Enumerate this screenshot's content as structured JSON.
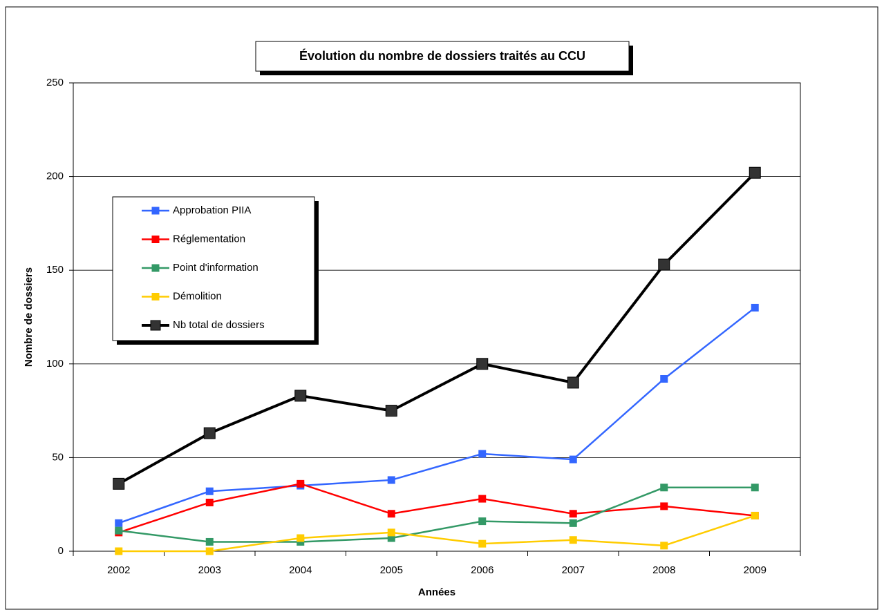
{
  "chart_data": {
    "type": "line",
    "title": "Évolution du nombre de dossiers traités au CCU",
    "x_label": "Années",
    "y_label": "Nombre de dossiers",
    "categories": [
      "2002",
      "2003",
      "2004",
      "2005",
      "2006",
      "2007",
      "2008",
      "2009"
    ],
    "series": [
      {
        "name": "Approbation PIIA",
        "color": "#3366ff",
        "values": [
          15,
          32,
          35,
          38,
          52,
          49,
          92,
          130
        ]
      },
      {
        "name": "Réglementation",
        "color": "#ff0000",
        "values": [
          10,
          26,
          36,
          20,
          28,
          20,
          24,
          19
        ]
      },
      {
        "name": "Point d'information",
        "color": "#339966",
        "values": [
          11,
          5,
          5,
          7,
          16,
          15,
          34,
          34
        ]
      },
      {
        "name": "Démolition",
        "color": "#ffcc00",
        "values": [
          0,
          0,
          7,
          10,
          4,
          6,
          3,
          19
        ]
      },
      {
        "name": "Nb total de dossiers",
        "color": "#000000",
        "marker_color": "#333333",
        "values": [
          36,
          63,
          83,
          75,
          100,
          90,
          153,
          202
        ]
      }
    ],
    "ylim": [
      0,
      250
    ],
    "yticks": [
      0,
      50,
      100,
      150,
      200,
      250
    ],
    "grid": true
  }
}
